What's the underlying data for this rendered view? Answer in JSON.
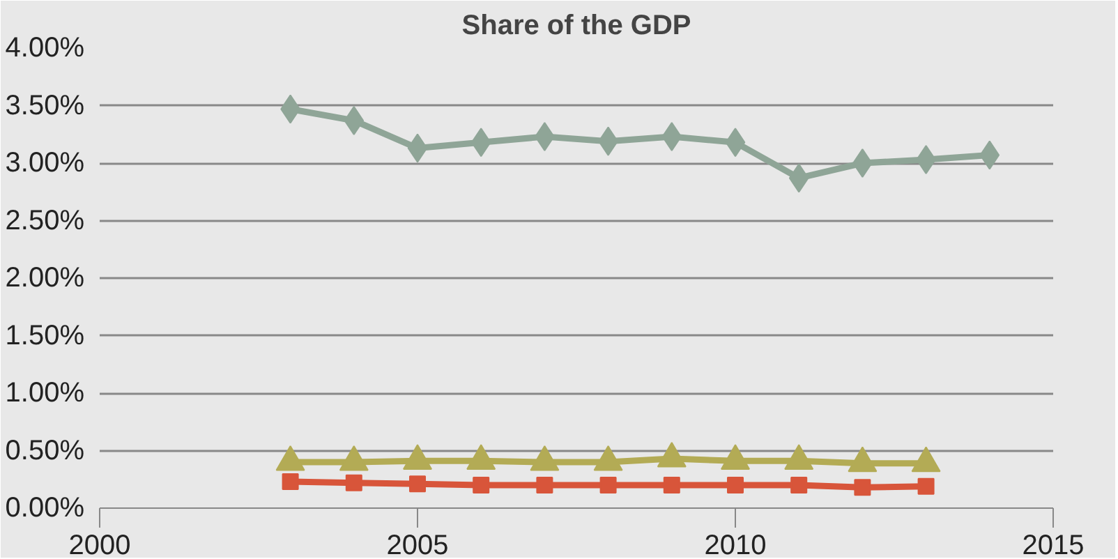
{
  "chart_data": {
    "type": "line",
    "title": "Share of the GDP",
    "x": [
      2003,
      2004,
      2005,
      2006,
      2007,
      2008,
      2009,
      2010,
      2011,
      2012,
      2013,
      2014
    ],
    "series": [
      {
        "color": "#8fa597",
        "marker": "diamond",
        "values": [
          3.47,
          3.37,
          3.13,
          3.18,
          3.23,
          3.19,
          3.23,
          3.18,
          2.87,
          3.0,
          3.03,
          3.07
        ]
      },
      {
        "color": "#b3ab55",
        "marker": "triangle",
        "values": [
          0.4,
          0.4,
          0.41,
          0.41,
          0.4,
          0.4,
          0.43,
          0.41,
          0.41,
          0.39,
          0.39,
          null
        ]
      },
      {
        "color": "#d8553a",
        "marker": "square",
        "values": [
          0.23,
          0.22,
          0.21,
          0.2,
          0.2,
          0.2,
          0.2,
          0.2,
          0.2,
          0.18,
          0.19,
          null
        ]
      }
    ],
    "xlim": [
      2000,
      2015
    ],
    "xticks": [
      2000,
      2005,
      2010,
      2015
    ],
    "ylim": [
      0,
      4
    ],
    "yticks": [
      {
        "value": 0,
        "label": "0.00%"
      },
      {
        "value": 0.5,
        "label": "0.50%"
      },
      {
        "value": 1,
        "label": "1.00%"
      },
      {
        "value": 1.5,
        "label": "1.50%"
      },
      {
        "value": 2,
        "label": "2.00%"
      },
      {
        "value": 2.5,
        "label": "2.50%"
      },
      {
        "value": 3,
        "label": "3.00%"
      },
      {
        "value": 3.5,
        "label": "3.50%"
      },
      {
        "value": 4,
        "label": "4.00%"
      }
    ],
    "grid": "y"
  }
}
